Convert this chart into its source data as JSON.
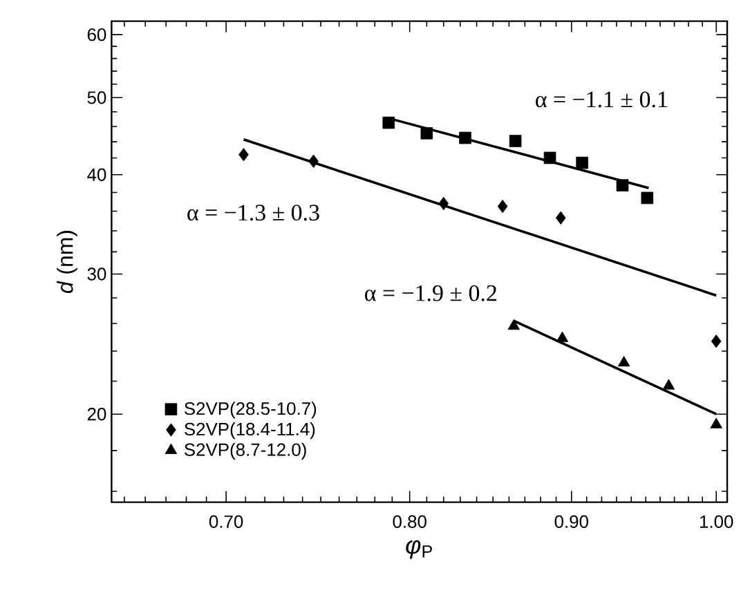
{
  "chart_data": {
    "type": "scatter",
    "xlabel": "*φ*$_{P}$",
    "ylabel": "*d* (nm)",
    "log": "xy",
    "grid": false,
    "legend": "bottom left",
    "xlim": [
      0.644,
      1.008
    ],
    "ylim": [
      15.5,
      62.4
    ],
    "xticks": [
      {
        "value": 0.7,
        "label": "0.70"
      },
      {
        "value": 0.8,
        "label": "0.80"
      },
      {
        "value": 0.9,
        "label": "0.90"
      },
      {
        "value": 1.0,
        "label": "1.00"
      },
      {
        "value": 0.65,
        "label": null
      },
      {
        "value": 0.66,
        "label": null
      },
      {
        "value": 0.67,
        "label": null
      },
      {
        "value": 0.68,
        "label": null
      },
      {
        "value": 0.69,
        "label": null
      },
      {
        "value": 0.71,
        "label": null
      },
      {
        "value": 0.72,
        "label": null
      },
      {
        "value": 0.73,
        "label": null
      },
      {
        "value": 0.74,
        "label": null
      },
      {
        "value": 0.75,
        "label": null
      },
      {
        "value": 0.76,
        "label": null
      },
      {
        "value": 0.77,
        "label": null
      },
      {
        "value": 0.78,
        "label": null
      },
      {
        "value": 0.79,
        "label": null
      },
      {
        "value": 0.81,
        "label": null
      },
      {
        "value": 0.82,
        "label": null
      },
      {
        "value": 0.83,
        "label": null
      },
      {
        "value": 0.84,
        "label": null
      },
      {
        "value": 0.85,
        "label": null
      },
      {
        "value": 0.86,
        "label": null
      },
      {
        "value": 0.87,
        "label": null
      },
      {
        "value": 0.88,
        "label": null
      },
      {
        "value": 0.89,
        "label": null
      },
      {
        "value": 0.91,
        "label": null
      },
      {
        "value": 0.92,
        "label": null
      },
      {
        "value": 0.93,
        "label": null
      },
      {
        "value": 0.94,
        "label": null
      },
      {
        "value": 0.95,
        "label": null
      },
      {
        "value": 0.96,
        "label": null
      },
      {
        "value": 0.97,
        "label": null
      },
      {
        "value": 0.98,
        "label": null
      },
      {
        "value": 0.99,
        "label": null
      }
    ],
    "yticks": [
      20,
      30,
      40,
      50,
      60,
      {
        "value": 16,
        "label": null
      },
      {
        "value": 18,
        "label": null
      },
      {
        "value": 22,
        "label": null
      },
      {
        "value": 24,
        "label": null
      },
      {
        "value": 26,
        "label": null
      },
      {
        "value": 28,
        "label": null
      },
      {
        "value": 32,
        "label": null
      },
      {
        "value": 34,
        "label": null
      },
      {
        "value": 36,
        "label": null
      },
      {
        "value": 38,
        "label": null
      },
      {
        "value": 42,
        "label": null
      },
      {
        "value": 44,
        "label": null
      },
      {
        "value": 46,
        "label": null
      },
      {
        "value": 48,
        "label": null
      },
      {
        "value": 52,
        "label": null
      },
      {
        "value": 54,
        "label": null
      },
      {
        "value": 56,
        "label": null
      },
      {
        "value": 58,
        "label": null
      }
    ],
    "series": [
      {
        "name": "S2VP(28.5-10.7)",
        "color": "#000000",
        "marker": "square",
        "x": [
          0.788,
          0.81,
          0.833,
          0.864,
          0.886,
          0.907,
          0.934,
          0.951
        ],
        "values": [
          46.5,
          45.1,
          44.5,
          44.1,
          42.0,
          41.4,
          38.8,
          37.4
        ]
      },
      {
        "name": "S2VP(18.4-11.4)",
        "color": "#000000",
        "marker": "diamond",
        "x": [
          0.709,
          0.746,
          0.82,
          0.856,
          0.893,
          1.0
        ],
        "values": [
          42.4,
          41.6,
          36.8,
          36.5,
          35.3,
          24.7
        ]
      },
      {
        "name": "S2VP(8.7-12.0)",
        "color": "#000000",
        "marker": "triangle",
        "x": [
          0.863,
          0.894,
          0.935,
          0.966,
          1.0
        ],
        "values": [
          25.8,
          24.9,
          23.2,
          21.7,
          19.4
        ]
      },
      {
        "type": "line",
        "color": "#000000",
        "marker": "none",
        "x": [
          0.788,
          0.952
        ],
        "values": [
          47.1,
          38.5
        ]
      },
      {
        "type": "line",
        "color": "#000000",
        "marker": "none",
        "x": [
          0.709,
          1.0
        ],
        "values": [
          44.3,
          28.2
        ]
      },
      {
        "type": "line",
        "color": "#000000",
        "marker": "none",
        "x": [
          0.863,
          1.0
        ],
        "values": [
          26.2,
          20.0
        ]
      }
    ],
    "annotations": [
      "α = −1.1 ± 0.1",
      "α = −1.3 ± 0.3",
      "α = −1.9 ± 0.2"
    ]
  }
}
